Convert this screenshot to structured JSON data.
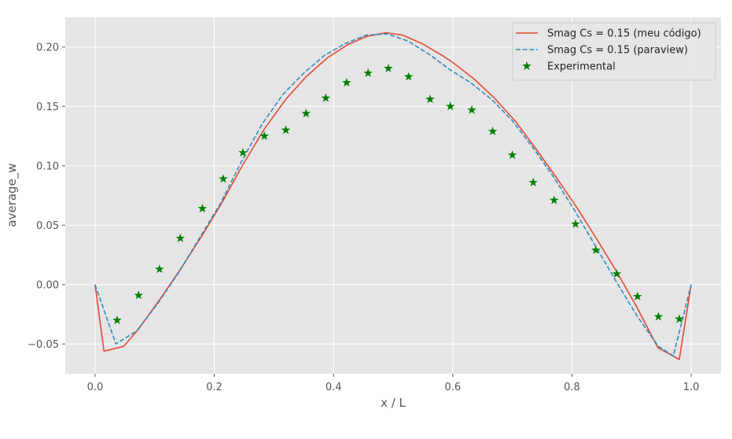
{
  "chart_data": {
    "type": "line",
    "title": "",
    "xlabel": "x / L",
    "ylabel": "average_w",
    "xlim": [
      -0.05,
      1.05
    ],
    "ylim": [
      -0.075,
      0.225
    ],
    "xticks": [
      0.0,
      0.2,
      0.4,
      0.6,
      0.8,
      1.0
    ],
    "xtick_labels": [
      "0.0",
      "0.2",
      "0.4",
      "0.6",
      "0.8",
      "1.0"
    ],
    "yticks": [
      -0.05,
      0.0,
      0.05,
      0.1,
      0.15,
      0.2
    ],
    "ytick_labels": [
      "−0.05",
      "0.00",
      "0.05",
      "0.10",
      "0.15",
      "0.20"
    ],
    "grid": true,
    "legend_position": "top-right",
    "background": "#e5e5e5",
    "grid_color": "#ffffff",
    "series": [
      {
        "name": "Smag Cs = 0.15 (meu código)",
        "style": "solid",
        "color": "#e24a33",
        "x": [
          0.0,
          0.015,
          0.048,
          0.072,
          0.108,
          0.142,
          0.178,
          0.214,
          0.248,
          0.284,
          0.32,
          0.354,
          0.39,
          0.424,
          0.456,
          0.488,
          0.516,
          0.548,
          0.582,
          0.6,
          0.636,
          0.67,
          0.706,
          0.74,
          0.774,
          0.808,
          0.842,
          0.876,
          0.91,
          0.944,
          0.98,
          1.0
        ],
        "y": [
          0.0,
          -0.056,
          -0.052,
          -0.038,
          -0.013,
          0.012,
          0.04,
          0.07,
          0.101,
          0.131,
          0.156,
          0.175,
          0.191,
          0.202,
          0.209,
          0.212,
          0.21,
          0.203,
          0.193,
          0.187,
          0.173,
          0.157,
          0.137,
          0.114,
          0.09,
          0.065,
          0.038,
          0.01,
          -0.02,
          -0.053,
          -0.063,
          0.0
        ]
      },
      {
        "name": "Smag Cs = 0.15 (paraview)",
        "style": "dashed",
        "color": "#348abd",
        "x": [
          0.0,
          0.035,
          0.07,
          0.105,
          0.14,
          0.175,
          0.21,
          0.245,
          0.28,
          0.315,
          0.35,
          0.385,
          0.42,
          0.455,
          0.49,
          0.525,
          0.56,
          0.595,
          0.63,
          0.665,
          0.7,
          0.735,
          0.77,
          0.805,
          0.84,
          0.875,
          0.91,
          0.945,
          0.97,
          1.0
        ],
        "y": [
          0.0,
          -0.05,
          -0.039,
          -0.016,
          0.01,
          0.039,
          0.068,
          0.103,
          0.135,
          0.16,
          0.178,
          0.193,
          0.203,
          0.21,
          0.211,
          0.205,
          0.194,
          0.181,
          0.17,
          0.156,
          0.138,
          0.115,
          0.09,
          0.062,
          0.032,
          0.002,
          -0.027,
          -0.052,
          -0.06,
          0.0
        ]
      },
      {
        "name": "Experimental",
        "style": "markers",
        "marker": "star",
        "color": "#008000",
        "x": [
          0.037,
          0.073,
          0.108,
          0.143,
          0.18,
          0.215,
          0.248,
          0.284,
          0.32,
          0.354,
          0.387,
          0.422,
          0.458,
          0.492,
          0.526,
          0.562,
          0.596,
          0.632,
          0.667,
          0.7,
          0.735,
          0.77,
          0.806,
          0.84,
          0.875,
          0.91,
          0.945,
          0.98
        ],
        "y": [
          -0.03,
          -0.009,
          0.013,
          0.039,
          0.064,
          0.089,
          0.111,
          0.125,
          0.13,
          0.144,
          0.157,
          0.17,
          0.178,
          0.182,
          0.175,
          0.156,
          0.15,
          0.147,
          0.129,
          0.109,
          0.086,
          0.071,
          0.051,
          0.029,
          0.009,
          -0.01,
          -0.027,
          -0.029
        ]
      }
    ]
  }
}
